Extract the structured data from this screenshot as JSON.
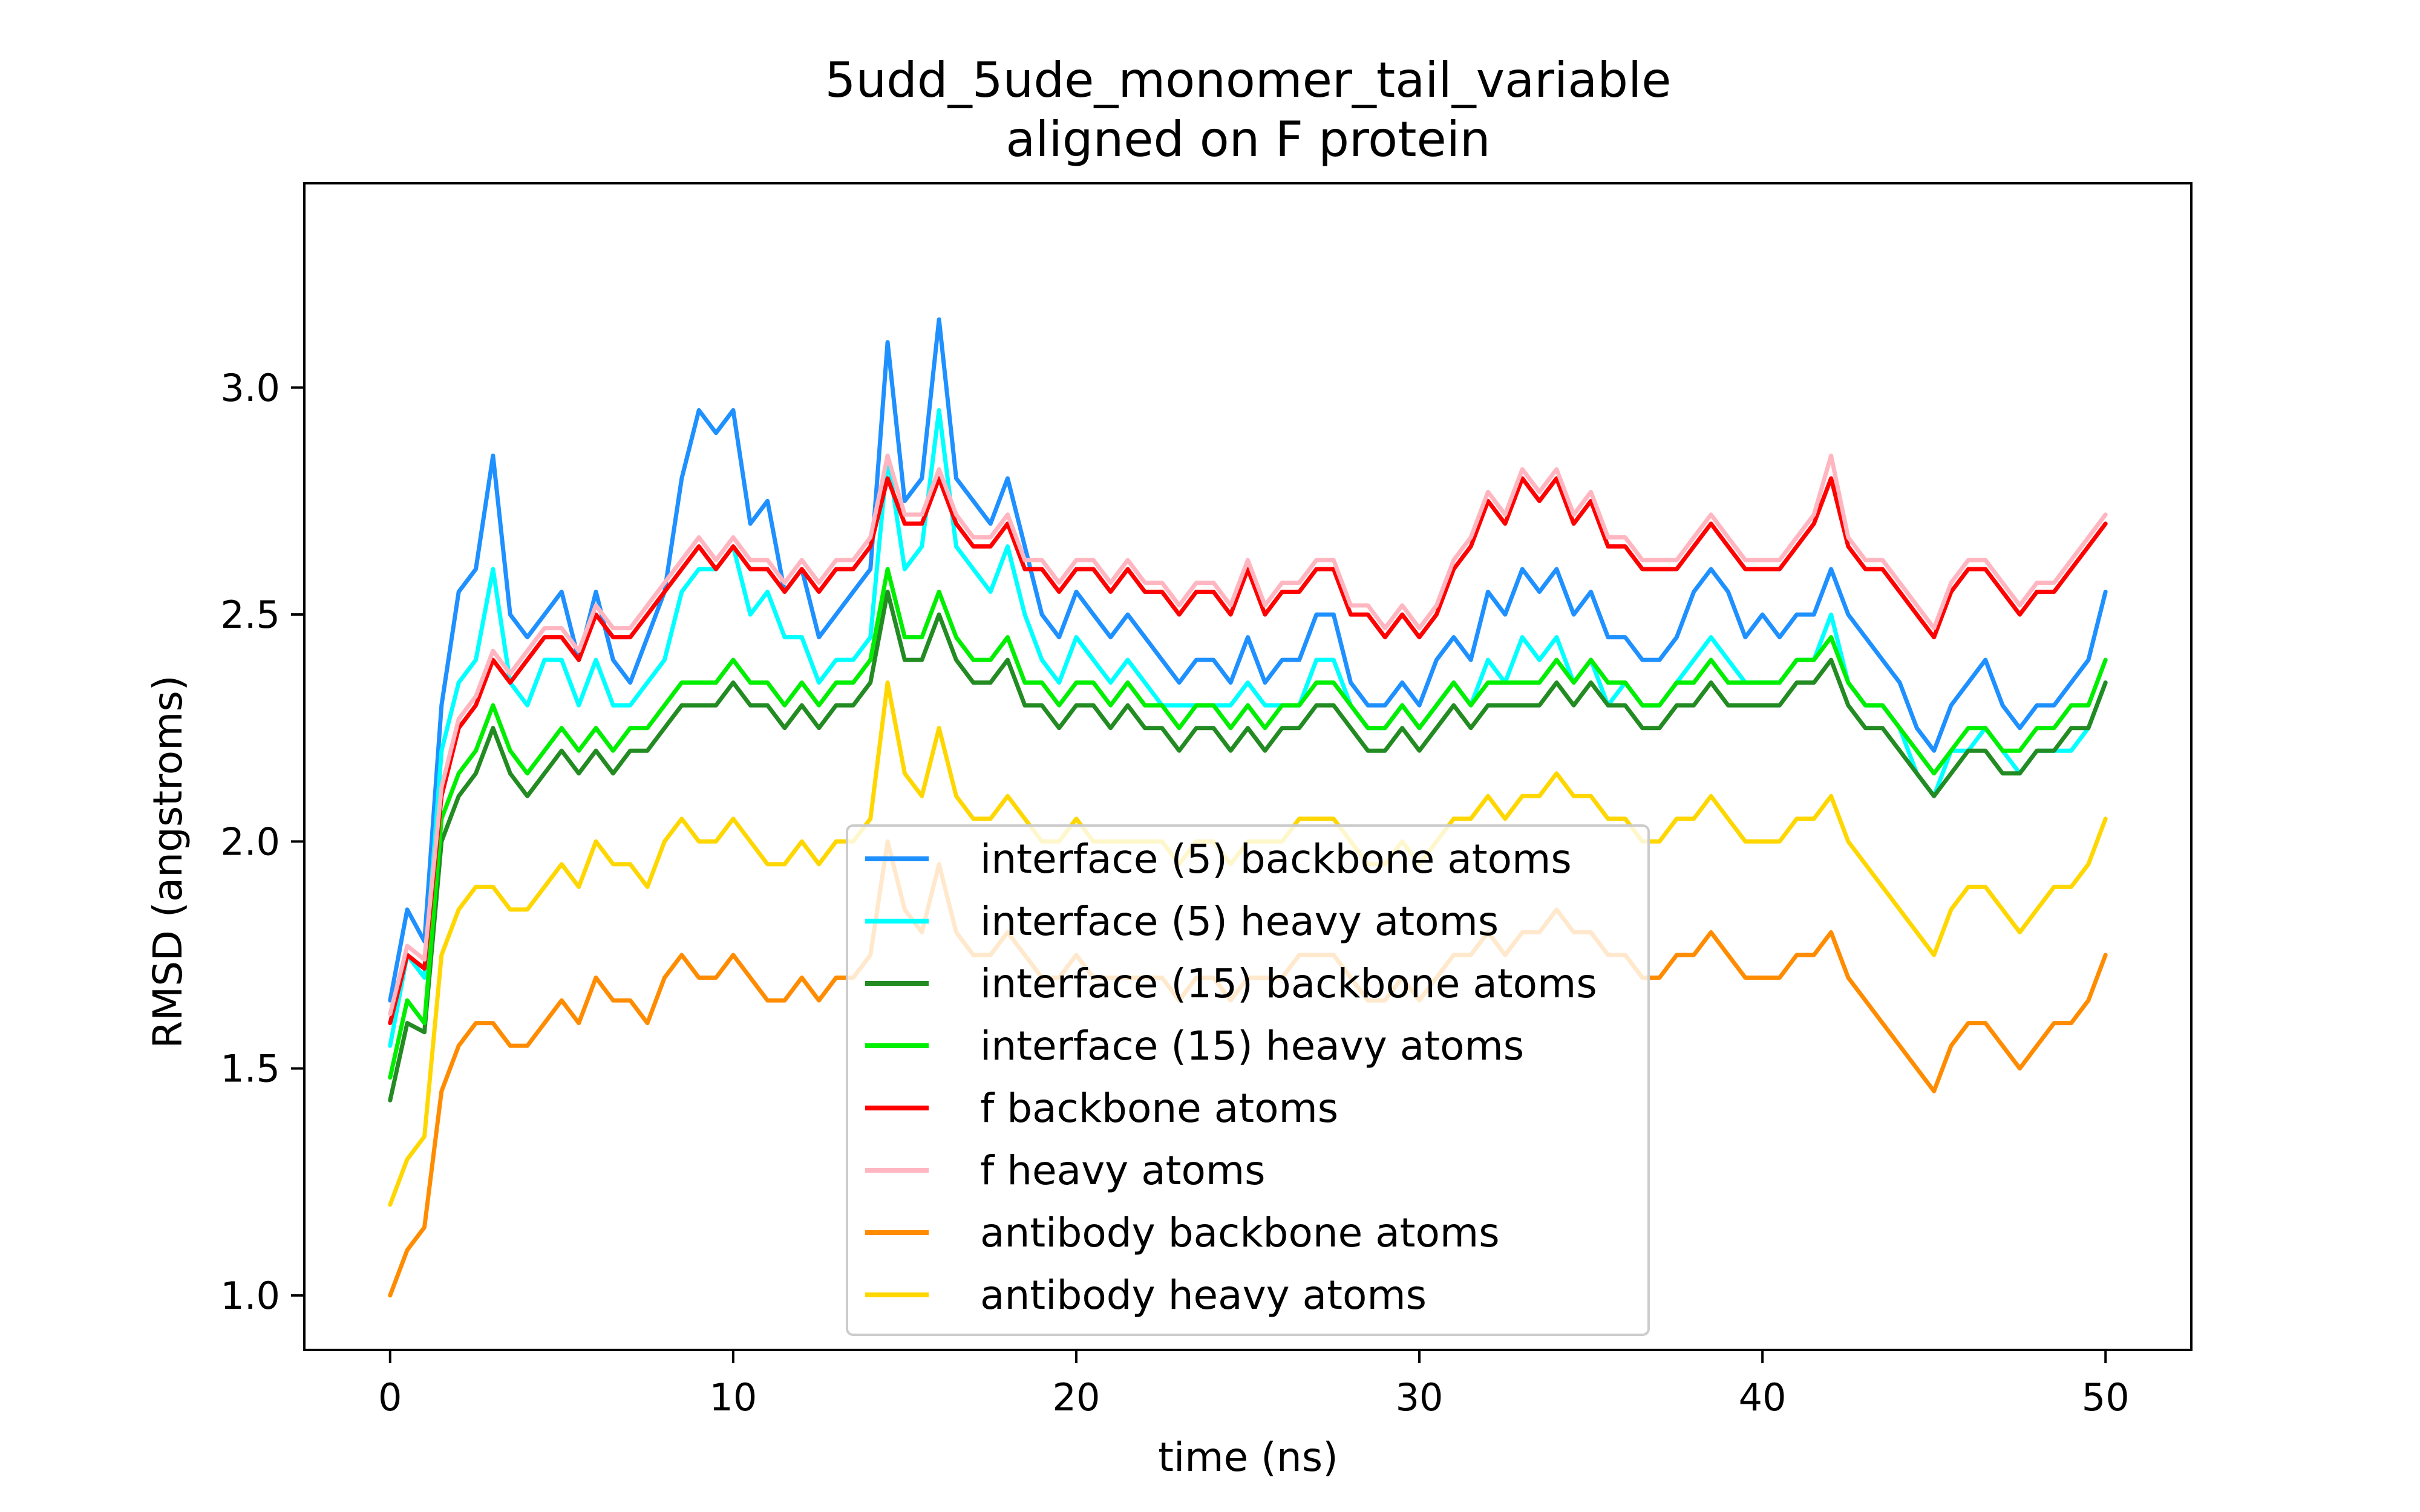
{
  "chart_data": {
    "type": "line",
    "title": "5udd_5ude_monomer_tail_variable",
    "subtitle": "aligned on F protein",
    "xlabel": "time (ns)",
    "ylabel": "RMSD (angstroms)",
    "xlim": [
      -2.5,
      52.5
    ],
    "ylim": [
      0.88,
      3.45
    ],
    "xticks": [
      0,
      10,
      20,
      30,
      40,
      50
    ],
    "yticks": [
      1.0,
      1.5,
      2.0,
      2.5,
      3.0
    ],
    "xtick_labels": [
      "0",
      "10",
      "20",
      "30",
      "40",
      "50"
    ],
    "ytick_labels": [
      "1.0",
      "1.5",
      "2.0",
      "2.5",
      "3.0"
    ],
    "grid": false,
    "legend_position": "lower-center",
    "x": [
      0,
      0.5,
      1,
      1.5,
      2,
      2.5,
      3,
      3.5,
      4,
      4.5,
      5,
      5.5,
      6,
      6.5,
      7,
      7.5,
      8,
      8.5,
      9,
      9.5,
      10,
      10.5,
      11,
      11.5,
      12,
      12.5,
      13,
      13.5,
      14,
      14.5,
      15,
      15.5,
      16,
      16.5,
      17,
      17.5,
      18,
      18.5,
      19,
      19.5,
      20,
      20.5,
      21,
      21.5,
      22,
      22.5,
      23,
      23.5,
      24,
      24.5,
      25,
      25.5,
      26,
      26.5,
      27,
      27.5,
      28,
      28.5,
      29,
      29.5,
      30,
      30.5,
      31,
      31.5,
      32,
      32.5,
      33,
      33.5,
      34,
      34.5,
      35,
      35.5,
      36,
      36.5,
      37,
      37.5,
      38,
      38.5,
      39,
      39.5,
      40,
      40.5,
      41,
      41.5,
      42,
      42.5,
      43,
      43.5,
      44,
      44.5,
      45,
      45.5,
      46,
      46.5,
      47,
      47.5,
      48,
      48.5,
      49,
      49.5,
      50
    ],
    "series": [
      {
        "name": "interface (5) backbone atoms",
        "color": "#1e90ff",
        "values": [
          1.65,
          1.85,
          1.78,
          2.3,
          2.55,
          2.6,
          2.85,
          2.5,
          2.45,
          2.5,
          2.55,
          2.4,
          2.55,
          2.4,
          2.35,
          2.45,
          2.55,
          2.8,
          2.95,
          2.9,
          2.95,
          2.7,
          2.75,
          2.55,
          2.6,
          2.45,
          2.5,
          2.55,
          2.6,
          3.1,
          2.75,
          2.8,
          3.15,
          2.8,
          2.75,
          2.7,
          2.8,
          2.65,
          2.5,
          2.45,
          2.55,
          2.5,
          2.45,
          2.5,
          2.45,
          2.4,
          2.35,
          2.4,
          2.4,
          2.35,
          2.45,
          2.35,
          2.4,
          2.4,
          2.5,
          2.5,
          2.35,
          2.3,
          2.3,
          2.35,
          2.3,
          2.4,
          2.45,
          2.4,
          2.55,
          2.5,
          2.6,
          2.55,
          2.6,
          2.5,
          2.55,
          2.45,
          2.45,
          2.4,
          2.4,
          2.45,
          2.55,
          2.6,
          2.55,
          2.45,
          2.5,
          2.45,
          2.5,
          2.5,
          2.6,
          2.5,
          2.45,
          2.4,
          2.35,
          2.25,
          2.2,
          2.3,
          2.35,
          2.4,
          2.3,
          2.25,
          2.3,
          2.3,
          2.35,
          2.4,
          2.55
        ]
      },
      {
        "name": "interface (5) heavy atoms",
        "color": "#00ffff",
        "values": [
          1.55,
          1.75,
          1.7,
          2.2,
          2.35,
          2.4,
          2.6,
          2.35,
          2.3,
          2.4,
          2.4,
          2.3,
          2.4,
          2.3,
          2.3,
          2.35,
          2.4,
          2.55,
          2.6,
          2.6,
          2.65,
          2.5,
          2.55,
          2.45,
          2.45,
          2.35,
          2.4,
          2.4,
          2.45,
          2.85,
          2.6,
          2.65,
          2.95,
          2.65,
          2.6,
          2.55,
          2.65,
          2.5,
          2.4,
          2.35,
          2.45,
          2.4,
          2.35,
          2.4,
          2.35,
          2.3,
          2.3,
          2.3,
          2.3,
          2.3,
          2.35,
          2.3,
          2.3,
          2.3,
          2.4,
          2.4,
          2.3,
          2.25,
          2.25,
          2.3,
          2.25,
          2.3,
          2.35,
          2.3,
          2.4,
          2.35,
          2.45,
          2.4,
          2.45,
          2.35,
          2.4,
          2.3,
          2.35,
          2.3,
          2.3,
          2.35,
          2.4,
          2.45,
          2.4,
          2.35,
          2.35,
          2.35,
          2.4,
          2.4,
          2.5,
          2.35,
          2.3,
          2.3,
          2.25,
          2.15,
          2.1,
          2.2,
          2.2,
          2.25,
          2.2,
          2.15,
          2.2,
          2.2,
          2.2,
          2.25,
          2.35
        ]
      },
      {
        "name": "interface (15) backbone atoms",
        "color": "#228b22",
        "values": [
          1.43,
          1.6,
          1.58,
          2.0,
          2.1,
          2.15,
          2.25,
          2.15,
          2.1,
          2.15,
          2.2,
          2.15,
          2.2,
          2.15,
          2.2,
          2.2,
          2.25,
          2.3,
          2.3,
          2.3,
          2.35,
          2.3,
          2.3,
          2.25,
          2.3,
          2.25,
          2.3,
          2.3,
          2.35,
          2.55,
          2.4,
          2.4,
          2.5,
          2.4,
          2.35,
          2.35,
          2.4,
          2.3,
          2.3,
          2.25,
          2.3,
          2.3,
          2.25,
          2.3,
          2.25,
          2.25,
          2.2,
          2.25,
          2.25,
          2.2,
          2.25,
          2.2,
          2.25,
          2.25,
          2.3,
          2.3,
          2.25,
          2.2,
          2.2,
          2.25,
          2.2,
          2.25,
          2.3,
          2.25,
          2.3,
          2.3,
          2.3,
          2.3,
          2.35,
          2.3,
          2.35,
          2.3,
          2.3,
          2.25,
          2.25,
          2.3,
          2.3,
          2.35,
          2.3,
          2.3,
          2.3,
          2.3,
          2.35,
          2.35,
          2.4,
          2.3,
          2.25,
          2.25,
          2.2,
          2.15,
          2.1,
          2.15,
          2.2,
          2.2,
          2.15,
          2.15,
          2.2,
          2.2,
          2.25,
          2.25,
          2.35
        ]
      },
      {
        "name": "interface (15) heavy atoms",
        "color": "#00ee00",
        "values": [
          1.48,
          1.65,
          1.6,
          2.05,
          2.15,
          2.2,
          2.3,
          2.2,
          2.15,
          2.2,
          2.25,
          2.2,
          2.25,
          2.2,
          2.25,
          2.25,
          2.3,
          2.35,
          2.35,
          2.35,
          2.4,
          2.35,
          2.35,
          2.3,
          2.35,
          2.3,
          2.35,
          2.35,
          2.4,
          2.6,
          2.45,
          2.45,
          2.55,
          2.45,
          2.4,
          2.4,
          2.45,
          2.35,
          2.35,
          2.3,
          2.35,
          2.35,
          2.3,
          2.35,
          2.3,
          2.3,
          2.25,
          2.3,
          2.3,
          2.25,
          2.3,
          2.25,
          2.3,
          2.3,
          2.35,
          2.35,
          2.3,
          2.25,
          2.25,
          2.3,
          2.25,
          2.3,
          2.35,
          2.3,
          2.35,
          2.35,
          2.35,
          2.35,
          2.4,
          2.35,
          2.4,
          2.35,
          2.35,
          2.3,
          2.3,
          2.35,
          2.35,
          2.4,
          2.35,
          2.35,
          2.35,
          2.35,
          2.4,
          2.4,
          2.45,
          2.35,
          2.3,
          2.3,
          2.25,
          2.2,
          2.15,
          2.2,
          2.25,
          2.25,
          2.2,
          2.2,
          2.25,
          2.25,
          2.3,
          2.3,
          2.4
        ]
      },
      {
        "name": "f backbone atoms",
        "color": "#ff0000",
        "values": [
          1.6,
          1.75,
          1.72,
          2.1,
          2.25,
          2.3,
          2.4,
          2.35,
          2.4,
          2.45,
          2.45,
          2.4,
          2.5,
          2.45,
          2.45,
          2.5,
          2.55,
          2.6,
          2.65,
          2.6,
          2.65,
          2.6,
          2.6,
          2.55,
          2.6,
          2.55,
          2.6,
          2.6,
          2.65,
          2.8,
          2.7,
          2.7,
          2.8,
          2.7,
          2.65,
          2.65,
          2.7,
          2.6,
          2.6,
          2.55,
          2.6,
          2.6,
          2.55,
          2.6,
          2.55,
          2.55,
          2.5,
          2.55,
          2.55,
          2.5,
          2.6,
          2.5,
          2.55,
          2.55,
          2.6,
          2.6,
          2.5,
          2.5,
          2.45,
          2.5,
          2.45,
          2.5,
          2.6,
          2.65,
          2.75,
          2.7,
          2.8,
          2.75,
          2.8,
          2.7,
          2.75,
          2.65,
          2.65,
          2.6,
          2.6,
          2.6,
          2.65,
          2.7,
          2.65,
          2.6,
          2.6,
          2.6,
          2.65,
          2.7,
          2.8,
          2.65,
          2.6,
          2.6,
          2.55,
          2.5,
          2.45,
          2.55,
          2.6,
          2.6,
          2.55,
          2.5,
          2.55,
          2.55,
          2.6,
          2.65,
          2.7
        ]
      },
      {
        "name": "f heavy atoms",
        "color": "#ffb6c1",
        "values": [
          1.62,
          1.77,
          1.74,
          2.12,
          2.27,
          2.32,
          2.42,
          2.37,
          2.42,
          2.47,
          2.47,
          2.42,
          2.52,
          2.47,
          2.47,
          2.52,
          2.57,
          2.62,
          2.67,
          2.62,
          2.67,
          2.62,
          2.62,
          2.57,
          2.62,
          2.57,
          2.62,
          2.62,
          2.67,
          2.85,
          2.72,
          2.72,
          2.82,
          2.72,
          2.67,
          2.67,
          2.72,
          2.62,
          2.62,
          2.57,
          2.62,
          2.62,
          2.57,
          2.62,
          2.57,
          2.57,
          2.52,
          2.57,
          2.57,
          2.52,
          2.62,
          2.52,
          2.57,
          2.57,
          2.62,
          2.62,
          2.52,
          2.52,
          2.47,
          2.52,
          2.47,
          2.52,
          2.62,
          2.67,
          2.77,
          2.72,
          2.82,
          2.77,
          2.82,
          2.72,
          2.77,
          2.67,
          2.67,
          2.62,
          2.62,
          2.62,
          2.67,
          2.72,
          2.67,
          2.62,
          2.62,
          2.62,
          2.67,
          2.72,
          2.85,
          2.67,
          2.62,
          2.62,
          2.57,
          2.52,
          2.47,
          2.57,
          2.62,
          2.62,
          2.57,
          2.52,
          2.57,
          2.57,
          2.62,
          2.67,
          2.72
        ]
      },
      {
        "name": "antibody backbone atoms",
        "color": "#ff8c00",
        "values": [
          1.0,
          1.1,
          1.15,
          1.45,
          1.55,
          1.6,
          1.6,
          1.55,
          1.55,
          1.6,
          1.65,
          1.6,
          1.7,
          1.65,
          1.65,
          1.6,
          1.7,
          1.75,
          1.7,
          1.7,
          1.75,
          1.7,
          1.65,
          1.65,
          1.7,
          1.65,
          1.7,
          1.7,
          1.75,
          2.0,
          1.85,
          1.8,
          1.95,
          1.8,
          1.75,
          1.75,
          1.8,
          1.75,
          1.7,
          1.7,
          1.75,
          1.7,
          1.7,
          1.7,
          1.7,
          1.7,
          1.65,
          1.7,
          1.7,
          1.65,
          1.7,
          1.7,
          1.7,
          1.75,
          1.75,
          1.75,
          1.7,
          1.65,
          1.65,
          1.7,
          1.65,
          1.7,
          1.75,
          1.75,
          1.8,
          1.75,
          1.8,
          1.8,
          1.85,
          1.8,
          1.8,
          1.75,
          1.75,
          1.7,
          1.7,
          1.75,
          1.75,
          1.8,
          1.75,
          1.7,
          1.7,
          1.7,
          1.75,
          1.75,
          1.8,
          1.7,
          1.65,
          1.6,
          1.55,
          1.5,
          1.45,
          1.55,
          1.6,
          1.6,
          1.55,
          1.5,
          1.55,
          1.6,
          1.6,
          1.65,
          1.75
        ]
      },
      {
        "name": "antibody heavy atoms",
        "color": "#ffd700",
        "values": [
          1.2,
          1.3,
          1.35,
          1.75,
          1.85,
          1.9,
          1.9,
          1.85,
          1.85,
          1.9,
          1.95,
          1.9,
          2.0,
          1.95,
          1.95,
          1.9,
          2.0,
          2.05,
          2.0,
          2.0,
          2.05,
          2.0,
          1.95,
          1.95,
          2.0,
          1.95,
          2.0,
          2.0,
          2.05,
          2.35,
          2.15,
          2.1,
          2.25,
          2.1,
          2.05,
          2.05,
          2.1,
          2.05,
          2.0,
          2.0,
          2.05,
          2.0,
          2.0,
          2.0,
          2.0,
          2.0,
          1.95,
          2.0,
          2.0,
          1.95,
          2.0,
          2.0,
          2.0,
          2.05,
          2.05,
          2.05,
          2.0,
          1.95,
          1.95,
          2.0,
          1.95,
          2.0,
          2.05,
          2.05,
          2.1,
          2.05,
          2.1,
          2.1,
          2.15,
          2.1,
          2.1,
          2.05,
          2.05,
          2.0,
          2.0,
          2.05,
          2.05,
          2.1,
          2.05,
          2.0,
          2.0,
          2.0,
          2.05,
          2.05,
          2.1,
          2.0,
          1.95,
          1.9,
          1.85,
          1.8,
          1.75,
          1.85,
          1.9,
          1.9,
          1.85,
          1.8,
          1.85,
          1.9,
          1.9,
          1.95,
          2.05
        ]
      }
    ]
  }
}
